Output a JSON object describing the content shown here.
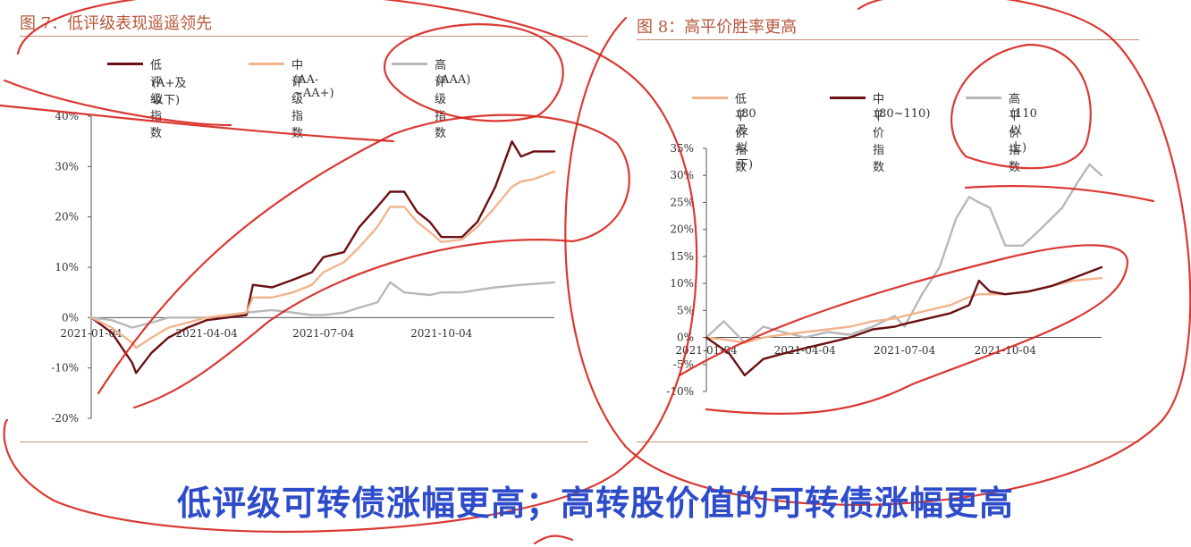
{
  "left": {
    "title": "图 7：低评级表现遥遥领先",
    "legend": [
      {
        "name": "低评级指数",
        "sub": "(A+及以下)",
        "color": "#6b0f12"
      },
      {
        "name": "中评级指数",
        "sub": "(AA-~AA+)",
        "color": "#f2b48c"
      },
      {
        "name": "高评级指数",
        "sub": "(AAA)",
        "color": "#b8b8b8"
      }
    ]
  },
  "right": {
    "title": "图 8：高平价胜率更高",
    "legend": [
      {
        "name": "低平价指数",
        "sub": "(80及以下)",
        "color": "#f2b48c"
      },
      {
        "name": "中平价指数",
        "sub": "(80~110)",
        "color": "#6b0f12"
      },
      {
        "name": "高平价指数",
        "sub": "(110以上)",
        "color": "#b8b8b8"
      }
    ]
  },
  "caption": "低评级可转债涨幅更高；高转股价值的可转债涨幅更高",
  "annotation_color": "#d6231c",
  "chart_data": [
    {
      "type": "line",
      "title": "图 7：低评级表现遥遥领先",
      "ylim": [
        -0.2,
        0.4
      ],
      "y_ticks": [
        "-20%",
        "-10%",
        "0%",
        "10%",
        "20%",
        "30%",
        "40%"
      ],
      "x_ticks": [
        "2021-01-04",
        "2021-04-04",
        "2021-07-04",
        "2021-10-04"
      ],
      "xlim": [
        "2021-01-04",
        "2021-12-31"
      ],
      "grid": false,
      "legend_position": "top",
      "series": [
        {
          "name": "低评级指数 (A+及以下)",
          "color": "#6b0f12",
          "points": [
            [
              "2021-01-04",
              0.0
            ],
            [
              "2021-01-20",
              -0.03
            ],
            [
              "2021-02-05",
              -0.09
            ],
            [
              "2021-02-08",
              -0.11
            ],
            [
              "2021-02-20",
              -0.07
            ],
            [
              "2021-03-05",
              -0.04
            ],
            [
              "2021-03-20",
              -0.02
            ],
            [
              "2021-04-04",
              -0.005
            ],
            [
              "2021-04-20",
              0.0
            ],
            [
              "2021-05-05",
              0.005
            ],
            [
              "2021-05-10",
              0.065
            ],
            [
              "2021-05-25",
              0.06
            ],
            [
              "2021-06-10",
              0.075
            ],
            [
              "2021-06-25",
              0.09
            ],
            [
              "2021-07-04",
              0.12
            ],
            [
              "2021-07-20",
              0.13
            ],
            [
              "2021-08-01",
              0.18
            ],
            [
              "2021-08-15",
              0.22
            ],
            [
              "2021-08-25",
              0.25
            ],
            [
              "2021-09-05",
              0.25
            ],
            [
              "2021-09-15",
              0.21
            ],
            [
              "2021-09-25",
              0.19
            ],
            [
              "2021-10-04",
              0.16
            ],
            [
              "2021-10-20",
              0.16
            ],
            [
              "2021-11-01",
              0.19
            ],
            [
              "2021-11-15",
              0.26
            ],
            [
              "2021-11-28",
              0.35
            ],
            [
              "2021-12-05",
              0.32
            ],
            [
              "2021-12-15",
              0.33
            ],
            [
              "2021-12-31",
              0.33
            ]
          ]
        },
        {
          "name": "中评级指数 (AA-~AA+)",
          "color": "#f2b48c",
          "points": [
            [
              "2021-01-04",
              0.0
            ],
            [
              "2021-01-20",
              -0.02
            ],
            [
              "2021-02-05",
              -0.05
            ],
            [
              "2021-02-08",
              -0.06
            ],
            [
              "2021-02-20",
              -0.04
            ],
            [
              "2021-03-05",
              -0.02
            ],
            [
              "2021-03-20",
              -0.01
            ],
            [
              "2021-04-04",
              0.0
            ],
            [
              "2021-04-20",
              0.005
            ],
            [
              "2021-05-05",
              0.01
            ],
            [
              "2021-05-10",
              0.04
            ],
            [
              "2021-05-25",
              0.04
            ],
            [
              "2021-06-10",
              0.05
            ],
            [
              "2021-06-25",
              0.065
            ],
            [
              "2021-07-04",
              0.09
            ],
            [
              "2021-07-20",
              0.11
            ],
            [
              "2021-08-01",
              0.14
            ],
            [
              "2021-08-15",
              0.18
            ],
            [
              "2021-08-25",
              0.22
            ],
            [
              "2021-09-05",
              0.22
            ],
            [
              "2021-09-15",
              0.19
            ],
            [
              "2021-09-25",
              0.17
            ],
            [
              "2021-10-04",
              0.15
            ],
            [
              "2021-10-20",
              0.155
            ],
            [
              "2021-11-01",
              0.18
            ],
            [
              "2021-11-15",
              0.22
            ],
            [
              "2021-11-28",
              0.26
            ],
            [
              "2021-12-05",
              0.27
            ],
            [
              "2021-12-15",
              0.275
            ],
            [
              "2021-12-31",
              0.29
            ]
          ]
        },
        {
          "name": "高评级指数 (AAA)",
          "color": "#b8b8b8",
          "points": [
            [
              "2021-01-04",
              0.0
            ],
            [
              "2021-01-20",
              -0.005
            ],
            [
              "2021-02-05",
              -0.02
            ],
            [
              "2021-02-20",
              -0.01
            ],
            [
              "2021-03-05",
              0.0
            ],
            [
              "2021-03-20",
              0.0
            ],
            [
              "2021-04-04",
              0.0
            ],
            [
              "2021-04-20",
              0.005
            ],
            [
              "2021-05-05",
              0.01
            ],
            [
              "2021-05-25",
              0.015
            ],
            [
              "2021-06-10",
              0.01
            ],
            [
              "2021-06-25",
              0.005
            ],
            [
              "2021-07-04",
              0.005
            ],
            [
              "2021-07-20",
              0.01
            ],
            [
              "2021-08-01",
              0.02
            ],
            [
              "2021-08-15",
              0.03
            ],
            [
              "2021-08-25",
              0.07
            ],
            [
              "2021-09-05",
              0.05
            ],
            [
              "2021-09-25",
              0.045
            ],
            [
              "2021-10-04",
              0.05
            ],
            [
              "2021-10-20",
              0.05
            ],
            [
              "2021-11-01",
              0.055
            ],
            [
              "2021-11-15",
              0.06
            ],
            [
              "2021-12-05",
              0.065
            ],
            [
              "2021-12-31",
              0.07
            ]
          ]
        }
      ]
    },
    {
      "type": "line",
      "title": "图 8：高平价胜率更高",
      "ylim": [
        -0.1,
        0.35
      ],
      "y_ticks": [
        "-10%",
        "-5%",
        "0%",
        "5%",
        "10%",
        "15%",
        "20%",
        "25%",
        "30%",
        "35%"
      ],
      "x_ticks": [
        "2021-01-04",
        "2021-04-04",
        "2021-07-04",
        "2021-10-04"
      ],
      "xlim": [
        "2021-01-04",
        "2021-12-31"
      ],
      "grid": false,
      "legend_position": "top",
      "series": [
        {
          "name": "低平价指数 (80及以下)",
          "color": "#f2b48c",
          "points": [
            [
              "2021-01-04",
              0.0
            ],
            [
              "2021-01-25",
              -0.005
            ],
            [
              "2021-02-08",
              -0.01
            ],
            [
              "2021-02-25",
              0.0
            ],
            [
              "2021-03-15",
              0.005
            ],
            [
              "2021-04-04",
              0.01
            ],
            [
              "2021-04-25",
              0.015
            ],
            [
              "2021-05-15",
              0.02
            ],
            [
              "2021-06-05",
              0.03
            ],
            [
              "2021-06-25",
              0.035
            ],
            [
              "2021-07-04",
              0.04
            ],
            [
              "2021-07-25",
              0.05
            ],
            [
              "2021-08-15",
              0.06
            ],
            [
              "2021-09-01",
              0.075
            ],
            [
              "2021-09-10",
              0.08
            ],
            [
              "2021-09-25",
              0.08
            ],
            [
              "2021-10-04",
              0.08
            ],
            [
              "2021-10-25",
              0.085
            ],
            [
              "2021-11-15",
              0.095
            ],
            [
              "2021-12-05",
              0.105
            ],
            [
              "2021-12-31",
              0.11
            ]
          ]
        },
        {
          "name": "中平价指数 (80~110)",
          "color": "#6b0f12",
          "points": [
            [
              "2021-01-04",
              0.0
            ],
            [
              "2021-01-25",
              -0.03
            ],
            [
              "2021-02-08",
              -0.07
            ],
            [
              "2021-02-25",
              -0.04
            ],
            [
              "2021-03-15",
              -0.03
            ],
            [
              "2021-04-04",
              -0.02
            ],
            [
              "2021-04-25",
              -0.01
            ],
            [
              "2021-05-15",
              0.0
            ],
            [
              "2021-06-05",
              0.015
            ],
            [
              "2021-06-25",
              0.02
            ],
            [
              "2021-07-04",
              0.025
            ],
            [
              "2021-07-25",
              0.035
            ],
            [
              "2021-08-15",
              0.045
            ],
            [
              "2021-09-01",
              0.06
            ],
            [
              "2021-09-10",
              0.105
            ],
            [
              "2021-09-20",
              0.085
            ],
            [
              "2021-10-04",
              0.08
            ],
            [
              "2021-10-25",
              0.085
            ],
            [
              "2021-11-15",
              0.095
            ],
            [
              "2021-12-05",
              0.11
            ],
            [
              "2021-12-31",
              0.13
            ]
          ]
        },
        {
          "name": "高平价指数 (110以上)",
          "color": "#b8b8b8",
          "points": [
            [
              "2021-01-04",
              0.0
            ],
            [
              "2021-01-20",
              0.03
            ],
            [
              "2021-02-08",
              -0.01
            ],
            [
              "2021-02-25",
              0.02
            ],
            [
              "2021-03-15",
              0.01
            ],
            [
              "2021-04-04",
              0.0
            ],
            [
              "2021-04-25",
              0.01
            ],
            [
              "2021-05-15",
              0.005
            ],
            [
              "2021-06-05",
              0.02
            ],
            [
              "2021-06-25",
              0.04
            ],
            [
              "2021-07-04",
              0.02
            ],
            [
              "2021-07-20",
              0.08
            ],
            [
              "2021-08-05",
              0.13
            ],
            [
              "2021-08-20",
              0.22
            ],
            [
              "2021-09-01",
              0.26
            ],
            [
              "2021-09-10",
              0.25
            ],
            [
              "2021-09-20",
              0.24
            ],
            [
              "2021-10-04",
              0.17
            ],
            [
              "2021-10-20",
              0.17
            ],
            [
              "2021-11-05",
              0.2
            ],
            [
              "2021-11-25",
              0.24
            ],
            [
              "2021-12-10",
              0.29
            ],
            [
              "2021-12-20",
              0.32
            ],
            [
              "2021-12-31",
              0.3
            ]
          ]
        }
      ]
    }
  ]
}
